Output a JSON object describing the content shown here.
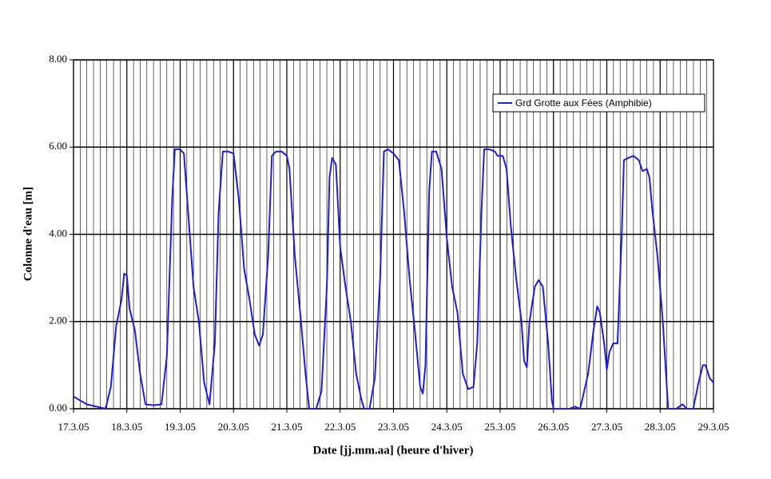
{
  "chart_data": {
    "type": "line",
    "x_label": "Date [jj.mm.aa] (heure d'hiver)",
    "y_label": "Colonne d'eau [m]",
    "x": [
      0,
      0.25,
      0.5,
      0.6,
      0.7,
      0.8,
      0.9,
      0.95,
      1.0,
      1.05,
      1.15,
      1.25,
      1.35,
      1.5,
      1.65,
      1.75,
      1.85,
      1.9,
      2.0,
      2.07,
      2.15,
      2.25,
      2.35,
      2.45,
      2.55,
      2.65,
      2.72,
      2.8,
      2.9,
      3.0,
      3.1,
      3.2,
      3.3,
      3.4,
      3.48,
      3.55,
      3.65,
      3.72,
      3.8,
      3.9,
      4.0,
      4.05,
      4.15,
      4.25,
      4.35,
      4.42,
      4.55,
      4.65,
      4.75,
      4.8,
      4.85,
      4.92,
      5.0,
      5.1,
      5.2,
      5.3,
      5.4,
      5.45,
      5.55,
      5.65,
      5.75,
      5.82,
      5.9,
      6.0,
      6.1,
      6.2,
      6.3,
      6.4,
      6.5,
      6.55,
      6.6,
      6.67,
      6.72,
      6.8,
      6.9,
      7.0,
      7.1,
      7.2,
      7.3,
      7.4,
      7.5,
      7.57,
      7.65,
      7.7,
      7.8,
      7.9,
      7.95,
      8.05,
      8.12,
      8.2,
      8.3,
      8.4,
      8.45,
      8.5,
      8.55,
      8.65,
      8.72,
      8.8,
      8.9,
      8.97,
      9.0,
      9.3,
      9.4,
      9.5,
      9.65,
      9.75,
      9.82,
      9.87,
      9.95,
      10.0,
      10.05,
      10.12,
      10.2,
      10.28,
      10.32,
      10.4,
      10.5,
      10.6,
      10.67,
      10.75,
      10.8,
      10.85,
      10.95,
      11.05,
      11.1,
      11.15,
      11.3,
      11.42,
      11.5,
      11.62,
      11.72,
      11.8,
      11.85,
      11.93,
      12.0
    ],
    "series": [
      {
        "name": "Grd Grotte aux Fées (Amphibie)",
        "color": "#1f1fd8",
        "values": [
          0.28,
          0.1,
          0.03,
          0.0,
          0.5,
          1.9,
          2.5,
          3.1,
          3.05,
          2.3,
          1.8,
          0.8,
          0.1,
          0.08,
          0.1,
          1.2,
          4.8,
          5.95,
          5.95,
          5.85,
          4.5,
          2.8,
          2.0,
          0.6,
          0.1,
          1.5,
          4.5,
          5.9,
          5.9,
          5.85,
          4.8,
          3.2,
          2.5,
          1.7,
          1.45,
          1.7,
          3.5,
          5.8,
          5.9,
          5.9,
          5.8,
          5.5,
          3.5,
          2.2,
          0.8,
          0.0,
          0.0,
          0.4,
          2.8,
          5.3,
          5.75,
          5.6,
          3.7,
          2.8,
          2.0,
          0.8,
          0.2,
          0.0,
          0.0,
          0.7,
          3.0,
          5.9,
          5.95,
          5.85,
          5.7,
          4.5,
          3.0,
          1.8,
          0.5,
          0.35,
          1.0,
          5.0,
          5.9,
          5.9,
          5.5,
          3.9,
          2.8,
          2.2,
          0.8,
          0.45,
          0.5,
          1.5,
          4.5,
          5.95,
          5.95,
          5.9,
          5.8,
          5.8,
          5.5,
          4.2,
          3.0,
          2.0,
          1.1,
          0.95,
          2.0,
          2.8,
          2.95,
          2.8,
          1.5,
          0.2,
          0.0,
          0.0,
          0.05,
          0.0,
          0.8,
          1.8,
          2.35,
          2.2,
          1.5,
          0.9,
          1.3,
          1.5,
          1.5,
          4.0,
          5.7,
          5.75,
          5.8,
          5.7,
          5.45,
          5.5,
          5.3,
          4.6,
          3.5,
          2.0,
          1.0,
          0.0,
          0.0,
          0.1,
          0.0,
          0.0,
          0.6,
          1.0,
          1.0,
          0.7,
          0.6
        ]
      }
    ],
    "xlim": [
      0,
      12
    ],
    "xticks": [
      {
        "value": 0,
        "label": "17.3.05"
      },
      {
        "value": 1,
        "label": "18.3.05"
      },
      {
        "value": 2,
        "label": "19.3.05"
      },
      {
        "value": 3,
        "label": "20.3.05"
      },
      {
        "value": 4,
        "label": "21.3.05"
      },
      {
        "value": 5,
        "label": "22.3.05"
      },
      {
        "value": 6,
        "label": "23.3.05"
      },
      {
        "value": 7,
        "label": "24.3.05"
      },
      {
        "value": 8,
        "label": "25.3.05"
      },
      {
        "value": 9,
        "label": "26.3.05"
      },
      {
        "value": 10,
        "label": "27.3.05"
      },
      {
        "value": 11,
        "label": "28.3.05"
      },
      {
        "value": 12,
        "label": "29.3.05"
      }
    ],
    "x_minor_divisions": 8,
    "ylim": [
      0,
      8
    ],
    "yticks": [
      {
        "value": 0,
        "label": "0.00"
      },
      {
        "value": 2,
        "label": "2.00"
      },
      {
        "value": 4,
        "label": "4.00"
      },
      {
        "value": 6,
        "label": "6.00"
      },
      {
        "value": 8,
        "label": "8.00"
      }
    ],
    "grid": true,
    "legend": "top-right"
  }
}
